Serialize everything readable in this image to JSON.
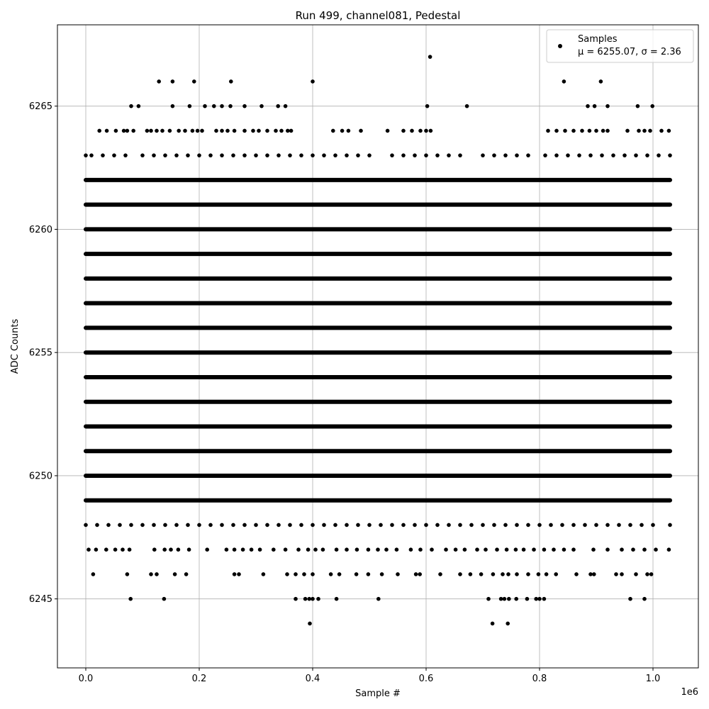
{
  "chart_data": {
    "type": "scatter",
    "title": "Run 499, channel081, Pedestal",
    "xlabel": "Sample #",
    "ylabel": "ADC Counts",
    "x_offset_text": "1e6",
    "xlim": [
      -50000,
      1080000
    ],
    "ylim": [
      6242.2,
      6268.3
    ],
    "x_ticks": [
      0.0,
      0.2,
      0.4,
      0.6,
      0.8,
      1.0
    ],
    "x_tick_labels": [
      "0.0",
      "0.2",
      "0.4",
      "0.6",
      "0.8",
      "1.0"
    ],
    "y_ticks": [
      6245,
      6250,
      6255,
      6260,
      6265
    ],
    "y_tick_labels": [
      "6245",
      "6250",
      "6255",
      "6260",
      "6265"
    ],
    "grid": true,
    "legend_position": "top-right",
    "marker_color": "#000000",
    "grid_color": "#b0b0b0",
    "series": [
      {
        "name": "Samples",
        "stats_label": "μ = 6255.07, σ = 2.36",
        "dense_bands": [
          {
            "y": 6249,
            "x_range": [
              0,
              1030000
            ]
          },
          {
            "y": 6250,
            "x_range": [
              0,
              1030000
            ]
          },
          {
            "y": 6251,
            "x_range": [
              0,
              1030000
            ]
          },
          {
            "y": 6252,
            "x_range": [
              0,
              1030000
            ]
          },
          {
            "y": 6253,
            "x_range": [
              0,
              1030000
            ]
          },
          {
            "y": 6254,
            "x_range": [
              0,
              1030000
            ]
          },
          {
            "y": 6255,
            "x_range": [
              0,
              1030000
            ]
          },
          {
            "y": 6256,
            "x_range": [
              0,
              1030000
            ]
          },
          {
            "y": 6257,
            "x_range": [
              0,
              1030000
            ]
          },
          {
            "y": 6258,
            "x_range": [
              0,
              1030000
            ]
          },
          {
            "y": 6259,
            "x_range": [
              0,
              1030000
            ]
          },
          {
            "y": 6260,
            "x_range": [
              0,
              1030000
            ]
          },
          {
            "y": 6261,
            "x_range": [
              0,
              1030000
            ]
          },
          {
            "y": 6262,
            "x_range": [
              0,
              1030000
            ]
          }
        ],
        "levels": [
          {
            "y": 6263,
            "x": [
              0,
              10000,
              30000,
              50000,
              70000,
              100000,
              120000,
              140000,
              160000,
              180000,
              200000,
              220000,
              240000,
              260000,
              280000,
              300000,
              320000,
              340000,
              360000,
              380000,
              400000,
              420000,
              440000,
              460000,
              480000,
              500000,
              540000,
              560000,
              580000,
              600000,
              620000,
              640000,
              660000,
              700000,
              720000,
              740000,
              760000,
              780000,
              810000,
              830000,
              850000,
              870000,
              890000,
              910000,
              930000,
              950000,
              970000,
              990000,
              1010000,
              1030000
            ]
          },
          {
            "y": 6248,
            "x": [
              0,
              20000,
              40000,
              60000,
              80000,
              100000,
              120000,
              140000,
              160000,
              180000,
              200000,
              220000,
              240000,
              260000,
              280000,
              300000,
              320000,
              340000,
              360000,
              380000,
              400000,
              420000,
              440000,
              460000,
              480000,
              500000,
              520000,
              540000,
              560000,
              580000,
              600000,
              620000,
              640000,
              660000,
              680000,
              700000,
              720000,
              740000,
              760000,
              780000,
              800000,
              820000,
              840000,
              860000,
              880000,
              900000,
              920000,
              940000,
              960000,
              980000,
              1000000,
              1030000
            ]
          },
          {
            "y": 6264,
            "x": [
              24000,
              37000,
              53000,
              67000,
              73000,
              84000,
              108000,
              115000,
              125000,
              135000,
              148000,
              164000,
              175000,
              188000,
              197000,
              205000,
              230000,
              240000,
              250000,
              262000,
              280000,
              295000,
              305000,
              320000,
              335000,
              345000,
              356000,
              362000,
              436000,
              452000,
              463000,
              485000,
              532000,
              560000,
              575000,
              590000,
              600000,
              608000,
              815000,
              830000,
              845000,
              860000,
              875000,
              888000,
              900000,
              912000,
              920000,
              955000,
              975000,
              985000,
              995000,
              1015000,
              1028000
            ]
          },
          {
            "y": 6247,
            "x": [
              5000,
              18000,
              36000,
              52000,
              65000,
              77000,
              121000,
              139000,
              150000,
              163000,
              182000,
              214000,
              248000,
              262000,
              277000,
              292000,
              307000,
              331000,
              352000,
              375000,
              392000,
              405000,
              418000,
              442000,
              460000,
              478000,
              498000,
              515000,
              530000,
              548000,
              573000,
              590000,
              610000,
              635000,
              652000,
              668000,
              690000,
              705000,
              725000,
              742000,
              758000,
              772000,
              790000,
              808000,
              825000,
              843000,
              860000,
              895000,
              920000,
              945000,
              965000,
              985000,
              1005000,
              1028000
            ]
          },
          {
            "y": 6265,
            "x": [
              80000,
              93000,
              153000,
              183000,
              210000,
              226000,
              240000,
              255000,
              280000,
              310000,
              339000,
              352000,
              602000,
              672000,
              885000,
              897000,
              920000,
              973000,
              999000
            ]
          },
          {
            "y": 6246,
            "x": [
              13000,
              73000,
              115000,
              125000,
              157000,
              177000,
              262000,
              270000,
              313000,
              355000,
              370000,
              385000,
              400000,
              432000,
              447000,
              477000,
              498000,
              522000,
              550000,
              582000,
              589000,
              625000,
              660000,
              678000,
              697000,
              718000,
              735000,
              745000,
              760000,
              780000,
              798000,
              812000,
              829000,
              865000,
              890000,
              896000,
              935000,
              945000,
              970000,
              990000,
              997000
            ]
          },
          {
            "y": 6266,
            "x": [
              129000,
              153000,
              191000,
              256000,
              400000,
              843000,
              908000
            ]
          },
          {
            "y": 6245,
            "x": [
              79000,
              138000,
              370000,
              387000,
              394000,
              400000,
              410000,
              442000,
              516000,
              710000,
              732000,
              738000,
              746000,
              759000,
              778000,
              794000,
              800000,
              808000,
              960000,
              985000
            ]
          },
          {
            "y": 6244,
            "x": [
              395000,
              717000,
              744000
            ]
          },
          {
            "y": 6267,
            "x": [
              607000
            ]
          }
        ]
      }
    ]
  }
}
